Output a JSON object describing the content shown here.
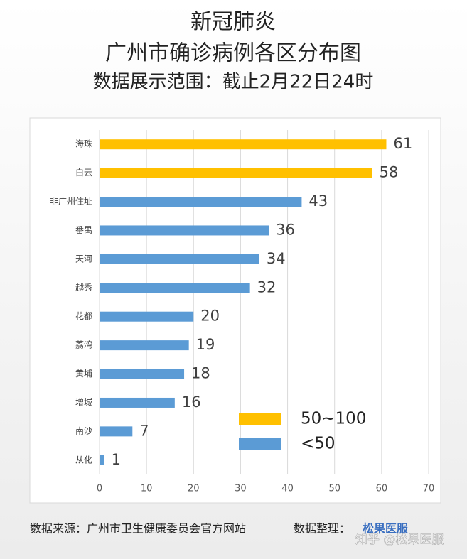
{
  "chart_data": {
    "type": "barh",
    "title_lines": [
      "新冠肺炎",
      "广州市确诊病例各区分布图",
      "数据展示范围：截止2月22日24时"
    ],
    "categories": [
      "海珠",
      "白云",
      "非广州住址",
      "番禺",
      "天河",
      "越秀",
      "花都",
      "荔湾",
      "黄埔",
      "增城",
      "南沙",
      "从化"
    ],
    "values": [
      61,
      58,
      43,
      36,
      34,
      32,
      20,
      19,
      18,
      16,
      7,
      1
    ],
    "colors": [
      "#ffc000",
      "#ffc000",
      "#5b9bd5",
      "#5b9bd5",
      "#5b9bd5",
      "#5b9bd5",
      "#5b9bd5",
      "#5b9bd5",
      "#5b9bd5",
      "#5b9bd5",
      "#5b9bd5",
      "#5b9bd5"
    ],
    "legend": [
      {
        "label": "50~100",
        "color": "#ffc000"
      },
      {
        "label": "<50",
        "color": "#5b9bd5"
      }
    ],
    "xlim": [
      0,
      70
    ],
    "xticks": [
      0,
      10,
      20,
      30,
      40,
      50,
      60,
      70
    ],
    "grid": true,
    "source": "数据来源：广州市卫生健康委员会官方网站",
    "organizer": "数据整理：",
    "organizer_name": "松果医服",
    "watermark": "知乎 @松果医服"
  }
}
